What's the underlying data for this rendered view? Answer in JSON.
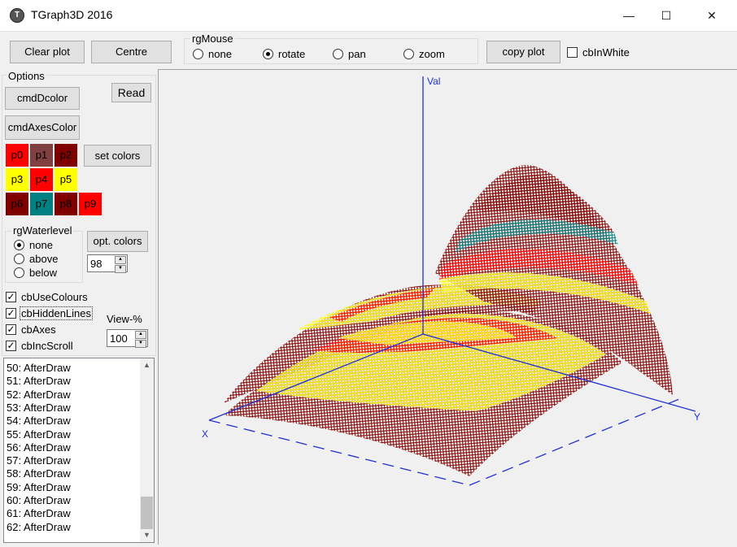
{
  "window": {
    "title": "TGraph3D 2016",
    "icon_letter": "T",
    "minimize": "—",
    "maximize": "☐",
    "close": "✕"
  },
  "toolbar": {
    "clear_plot": "Clear plot",
    "centre": "Centre",
    "rg_mouse": {
      "caption": "rgMouse",
      "options": [
        "none",
        "rotate",
        "pan",
        "zoom"
      ],
      "selected": "rotate"
    },
    "copy_plot": "copy plot",
    "cb_in_white": {
      "label": "cbInWhite",
      "checked": false
    }
  },
  "options": {
    "caption": "Options",
    "cmd_d_color": "cmdDcolor",
    "read": "Read",
    "cmd_axes_color": "cmdAxesColor",
    "set_colors": "set colors",
    "palette": [
      {
        "label": "p0",
        "color": "#ff0000"
      },
      {
        "label": "p1",
        "color": "#804040"
      },
      {
        "label": "p2",
        "color": "#800000"
      },
      {
        "label": "p3",
        "color": "#ffff00"
      },
      {
        "label": "p4",
        "color": "#ff0000"
      },
      {
        "label": "p5",
        "color": "#ffff00"
      },
      {
        "label": "p6",
        "color": "#800000"
      },
      {
        "label": "p7",
        "color": "#008080"
      },
      {
        "label": "p8",
        "color": "#800000"
      },
      {
        "label": "p9",
        "color": "#ff0000"
      }
    ],
    "rg_waterlevel": {
      "caption": "rgWaterlevel",
      "options": [
        "none",
        "above",
        "below"
      ],
      "selected": "none"
    },
    "opt_colors": "opt. colors",
    "water_value": "98",
    "checkboxes": [
      {
        "label": "cbUseColours",
        "checked": true
      },
      {
        "label": "cbHiddenLines",
        "checked": true
      },
      {
        "label": "cbAxes",
        "checked": true
      },
      {
        "label": "cbIncScroll",
        "checked": true
      }
    ],
    "view_percent_label": "View-%",
    "view_percent": "100"
  },
  "log": [
    "50: AfterDraw",
    "51: AfterDraw",
    "52: AfterDraw",
    "53: AfterDraw",
    "54: AfterDraw",
    "55: AfterDraw",
    "56: AfterDraw",
    "57: AfterDraw",
    "58: AfterDraw",
    "59: AfterDraw",
    "60: AfterDraw",
    "61: AfterDraw",
    "62: AfterDraw"
  ],
  "plot": {
    "axis_z_label": "Val",
    "axis_x_label": "X",
    "axis_y_label": "Y",
    "axis_color": "#2030d0",
    "mesh_colors": {
      "dark_red": "#800000",
      "red": "#ff0000",
      "yellow": "#ffff00",
      "teal": "#008080"
    }
  }
}
